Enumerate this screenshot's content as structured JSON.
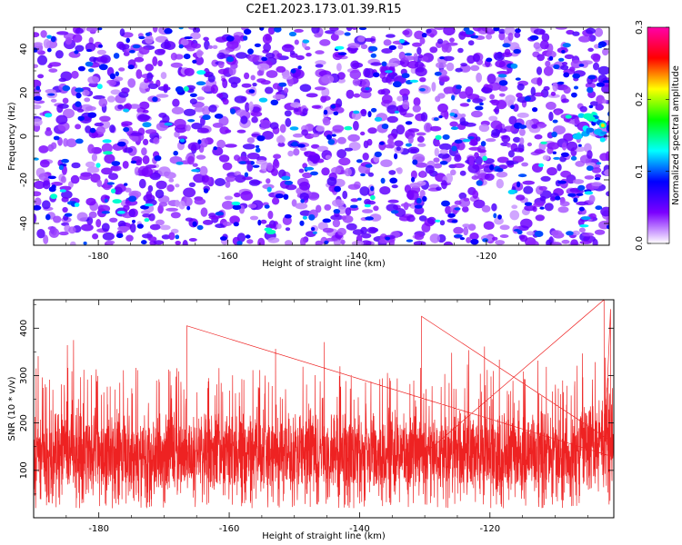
{
  "figure_title": "C2E1.2023.173.01.39.R15",
  "chart_data": [
    {
      "type": "heatmap",
      "xlabel": "Height of straight line (km)",
      "ylabel": "Frequency (Hz)",
      "xlim": [
        -190,
        -101
      ],
      "ylim": [
        -50,
        50
      ],
      "x_ticks": [
        -180,
        -160,
        -140,
        -120
      ],
      "y_ticks": [
        -40,
        -20,
        0,
        20,
        40
      ],
      "colorbar": {
        "label": "Normalized spectral amplitude",
        "range": [
          0.0,
          0.3
        ],
        "ticks": [
          "0.0",
          "0.1",
          "0.2",
          "0.3"
        ],
        "colors": [
          "#ffffff",
          "#7b00ff",
          "#0000ff",
          "#00ffff",
          "#00ff00",
          "#ffff00",
          "#ff0000",
          "#ff00aa"
        ]
      },
      "description_values": {
        "typical_amplitude": 0.05,
        "peak_amplitude": 0.22,
        "hotspot": {
          "x": -102,
          "y": 5
        }
      }
    },
    {
      "type": "line",
      "xlabel": "Height of straight line (km)",
      "ylabel": "SNR (10 * v/v)",
      "xlim": [
        -190,
        -101
      ],
      "ylim": [
        0,
        460
      ],
      "x_ticks": [
        -180,
        -160,
        -140,
        -120
      ],
      "y_ticks": [
        100,
        200,
        300,
        400
      ],
      "series": [
        {
          "color": "#ee2222",
          "mean": 130,
          "spread_low": 20,
          "spread_high": 320,
          "max": 460,
          "peaks": [
            {
              "x": -130.5,
              "y": 425
            },
            {
              "x": -102.5,
              "y": 460
            },
            {
              "x": -101.5,
              "y": 440
            },
            {
              "x": -166.5,
              "y": 405
            }
          ]
        }
      ]
    }
  ]
}
